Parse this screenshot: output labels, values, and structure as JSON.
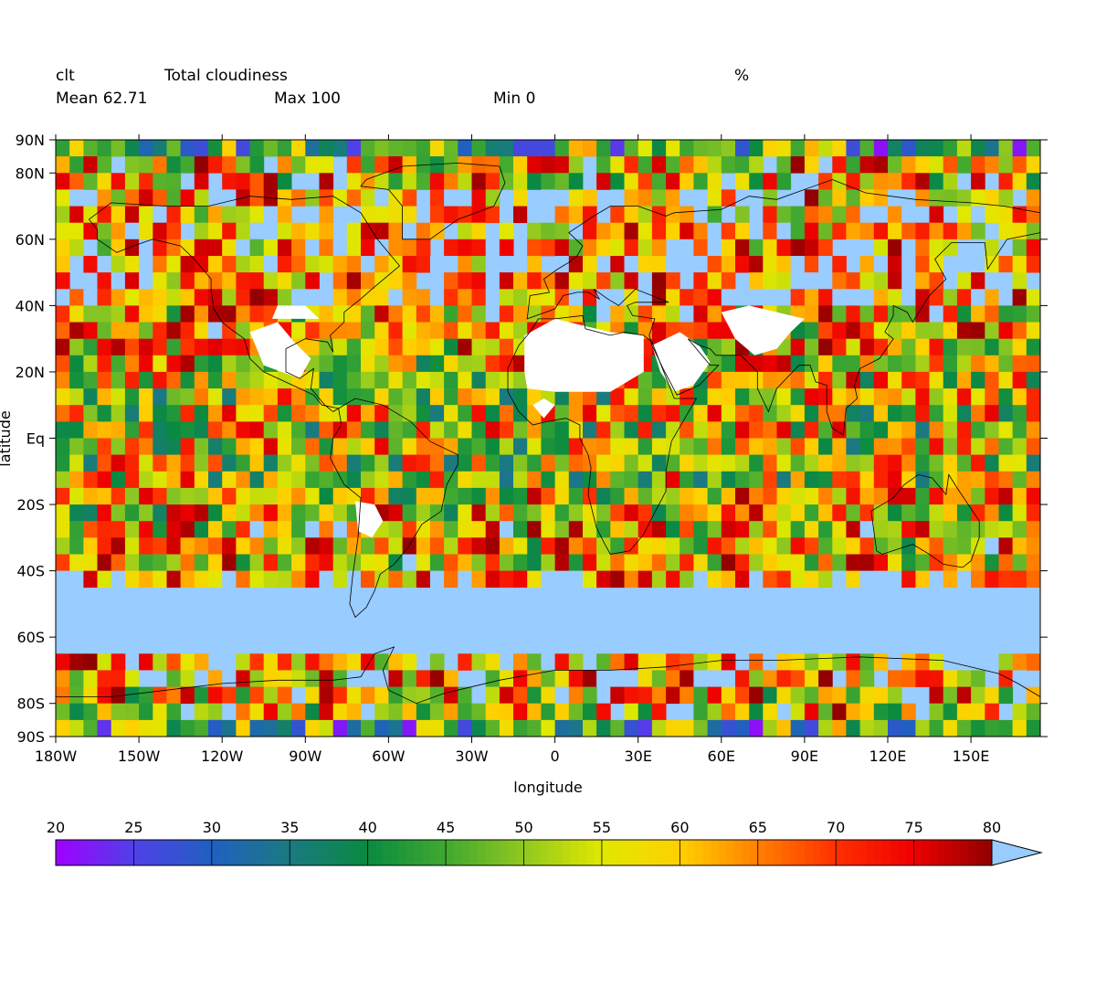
{
  "header": {
    "variable": "clt",
    "long_name": "Total cloudiness",
    "units": "%",
    "mean_label": "Mean 62.71",
    "max_label": "Max 100",
    "min_label": "Min 0"
  },
  "chart_data": {
    "type": "heatmap",
    "xlabel": "longitude",
    "ylabel": "latitude",
    "xlim": [
      -180,
      175
    ],
    "ylim": [
      -90,
      90
    ],
    "x_tick_values": [
      -180,
      -150,
      -120,
      -90,
      -60,
      -30,
      0,
      30,
      60,
      90,
      120,
      150
    ],
    "x_tick_labels": [
      "180W",
      "150W",
      "120W",
      "90W",
      "60W",
      "30W",
      "0",
      "30E",
      "60E",
      "90E",
      "120E",
      "150E"
    ],
    "y_tick_values": [
      90,
      80,
      60,
      40,
      20,
      0,
      -20,
      -40,
      -60,
      -80,
      -90
    ],
    "y_tick_labels": [
      "90N",
      "80N",
      "60N",
      "40N",
      "20N",
      "Eq",
      "20S",
      "40S",
      "60S",
      "80S",
      "90S"
    ],
    "grid_resolution_deg": 5,
    "missing_color": "#99ccff",
    "colorbar": {
      "tick_values": [
        20,
        25,
        30,
        35,
        40,
        45,
        50,
        55,
        60,
        65,
        70,
        75,
        80
      ],
      "tick_labels": [
        "20",
        "25",
        "30",
        "35",
        "40",
        "45",
        "50",
        "55",
        "60",
        "65",
        "70",
        "75",
        "80"
      ],
      "over_color": "#99ccff",
      "color_stops": [
        "#a000ff",
        "#5040e8",
        "#2060c0",
        "#1a7a80",
        "#0a8a40",
        "#40a830",
        "#90c820",
        "#e0e800",
        "#ffd000",
        "#ff8000",
        "#ff3000",
        "#ee0000",
        "#900000"
      ]
    }
  }
}
